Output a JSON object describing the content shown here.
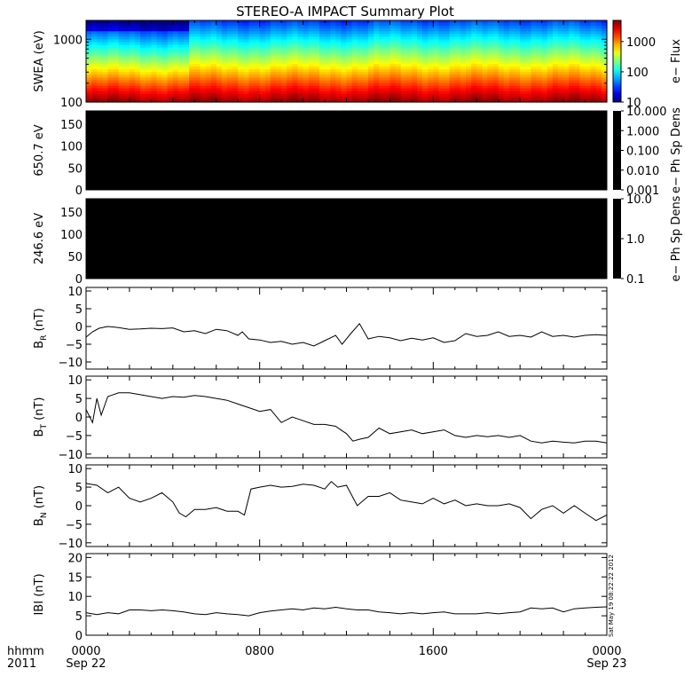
{
  "title": "STEREO-A IMPACT Summary Plot",
  "stamp": "Sat May 19 08:22:22 2012",
  "x_axis": {
    "row1_label": "hhmm",
    "row2_label": "2011",
    "ticks": [
      {
        "pos": 0,
        "label": "0000",
        "sub": "Sep 22"
      },
      {
        "pos": 0.3333,
        "label": "0800",
        "sub": ""
      },
      {
        "pos": 0.6667,
        "label": "1600",
        "sub": ""
      },
      {
        "pos": 1,
        "label": "0000",
        "sub": "Sep 23"
      }
    ]
  },
  "colors": {
    "line": "#000000",
    "pad_fill": "#000000"
  },
  "chart_data": [
    {
      "type": "heatmap",
      "ylabel": "SWEA (eV)",
      "yscale": "log",
      "ylim": [
        100,
        2000
      ],
      "yticks": [
        {
          "v": 100,
          "label": "100"
        },
        {
          "v": 1000,
          "label": "1000"
        }
      ],
      "colorbar": {
        "label": "e− Flux",
        "scale": "log",
        "range": [
          10,
          5000
        ],
        "ticks": [
          {
            "v": 10,
            "label": "10"
          },
          {
            "v": 100,
            "label": "100"
          },
          {
            "v": 1000,
            "label": "1000"
          }
        ]
      }
    },
    {
      "type": "heatmap",
      "ylabel": "650.7 eV",
      "ylim": [
        0,
        180
      ],
      "yticks": [
        {
          "v": 0,
          "label": "0"
        },
        {
          "v": 50,
          "label": "50"
        },
        {
          "v": 100,
          "label": "100"
        },
        {
          "v": 150,
          "label": "150"
        }
      ],
      "fill": "black",
      "colorbar": {
        "label": "e− Ph Sp Dens",
        "scale": "log",
        "range": [
          0.001,
          10
        ],
        "ticks": [
          {
            "v": 10,
            "label": "10.000"
          },
          {
            "v": 1,
            "label": "1.000"
          },
          {
            "v": 0.1,
            "label": "0.100"
          },
          {
            "v": 0.01,
            "label": "0.010"
          },
          {
            "v": 0.001,
            "label": "0.001"
          }
        ]
      }
    },
    {
      "type": "heatmap",
      "ylabel": "246.6 eV",
      "ylim": [
        0,
        180
      ],
      "yticks": [
        {
          "v": 0,
          "label": "0"
        },
        {
          "v": 50,
          "label": "50"
        },
        {
          "v": 100,
          "label": "100"
        },
        {
          "v": 150,
          "label": "150"
        }
      ],
      "fill": "black",
      "colorbar": {
        "label": "e− Ph Sp Dens",
        "scale": "log",
        "range": [
          0.1,
          10
        ],
        "ticks": [
          {
            "v": 10,
            "label": "10.0"
          },
          {
            "v": 1,
            "label": "1.0"
          },
          {
            "v": 0.1,
            "label": "0.1"
          }
        ]
      }
    },
    {
      "type": "line",
      "ylabel": "B",
      "ysub": "R",
      "yunit": " (nT)",
      "ylim": [
        -12,
        11
      ],
      "yticks": [
        {
          "v": -10,
          "label": "−10"
        },
        {
          "v": -5,
          "label": "−5"
        },
        {
          "v": 0,
          "label": "0"
        },
        {
          "v": 5,
          "label": "5"
        },
        {
          "v": 10,
          "label": "10"
        }
      ],
      "x": [
        0,
        0.3,
        0.6,
        1.0,
        1.5,
        2,
        2.5,
        3,
        3.5,
        4,
        4.5,
        5,
        5.5,
        6,
        6.5,
        7,
        7.2,
        7.5,
        8,
        8.5,
        9,
        9.5,
        10,
        10.5,
        11,
        11.5,
        11.8,
        12.2,
        12.6,
        13,
        13.5,
        14,
        14.5,
        15,
        15.5,
        16,
        16.5,
        17,
        17.5,
        18,
        18.5,
        19,
        19.5,
        20,
        20.5,
        21,
        21.5,
        22,
        22.5,
        23,
        23.5,
        24
      ],
      "y": [
        -3,
        -1.5,
        -0.5,
        0,
        -0.3,
        -0.8,
        -0.7,
        -0.5,
        -0.6,
        -0.4,
        -1.5,
        -1.2,
        -2,
        -0.8,
        -1.2,
        -2.5,
        -1.5,
        -3.5,
        -3.8,
        -4.5,
        -4.2,
        -5,
        -4.5,
        -5.5,
        -4,
        -2.5,
        -5,
        -2,
        0.8,
        -3.5,
        -2.8,
        -3.2,
        -4,
        -3.3,
        -3.8,
        -3.2,
        -4.5,
        -4,
        -2,
        -2.8,
        -2.5,
        -1.5,
        -2.8,
        -2.5,
        -3,
        -1.5,
        -2.8,
        -2.5,
        -3,
        -2.5,
        -2.3,
        -2.5
      ]
    },
    {
      "type": "line",
      "ylabel": "B",
      "ysub": "T",
      "yunit": " (nT)",
      "ylim": [
        -11,
        11
      ],
      "yticks": [
        {
          "v": -10,
          "label": "−10"
        },
        {
          "v": -5,
          "label": "−5"
        },
        {
          "v": 0,
          "label": "0"
        },
        {
          "v": 5,
          "label": "5"
        },
        {
          "v": 10,
          "label": "10"
        }
      ],
      "x": [
        0,
        0.3,
        0.5,
        0.7,
        1.0,
        1.5,
        2,
        2.5,
        3,
        3.5,
        4,
        4.5,
        5,
        5.5,
        6,
        6.5,
        7,
        7.5,
        8,
        8.5,
        9,
        9.5,
        10,
        10.5,
        11,
        11.5,
        12,
        12.3,
        12.6,
        13,
        13.5,
        14,
        14.5,
        15,
        15.5,
        16,
        16.5,
        17,
        17.5,
        18,
        18.5,
        19,
        19.5,
        20,
        20.5,
        21,
        21.5,
        22,
        22.5,
        23,
        23.5,
        24
      ],
      "y": [
        2,
        -1.5,
        5,
        0.5,
        5.5,
        6.5,
        6.5,
        6,
        5.5,
        5,
        5.5,
        5.3,
        5.8,
        5.5,
        5,
        4.5,
        3.5,
        2.5,
        1.5,
        2,
        -1.5,
        0,
        -1,
        -2,
        -2,
        -2.5,
        -4.5,
        -6.5,
        -6,
        -5.5,
        -3,
        -4.5,
        -4,
        -3.5,
        -4.5,
        -4,
        -3.5,
        -5,
        -5.5,
        -5,
        -5.3,
        -5,
        -5.5,
        -5,
        -6.5,
        -7,
        -6.5,
        -6.8,
        -7,
        -6.5,
        -6.5,
        -7
      ]
    },
    {
      "type": "line",
      "ylabel": "B",
      "ysub": "N",
      "yunit": " (nT)",
      "ylim": [
        -11,
        11
      ],
      "yticks": [
        {
          "v": -10,
          "label": "−10"
        },
        {
          "v": -5,
          "label": "−5"
        },
        {
          "v": 0,
          "label": "0"
        },
        {
          "v": 5,
          "label": "5"
        },
        {
          "v": 10,
          "label": "10"
        }
      ],
      "x": [
        0,
        0.5,
        1.0,
        1.5,
        2,
        2.5,
        3,
        3.5,
        4,
        4.3,
        4.6,
        5,
        5.5,
        6,
        6.5,
        7,
        7.3,
        7.6,
        8,
        8.5,
        9,
        9.5,
        10,
        10.5,
        11,
        11.3,
        11.6,
        12,
        12.5,
        13,
        13.5,
        14,
        14.5,
        15,
        15.5,
        16,
        16.5,
        17,
        17.5,
        18,
        18.5,
        19,
        19.5,
        20,
        20.5,
        21,
        21.5,
        22,
        22.5,
        23,
        23.5,
        24
      ],
      "y": [
        6,
        5.5,
        3.5,
        5,
        2,
        1,
        2,
        3.5,
        1,
        -2,
        -3,
        -1,
        -1,
        -0.5,
        -1.5,
        -1.5,
        -2.5,
        4.5,
        5,
        5.5,
        5,
        5.2,
        5.8,
        5.5,
        4.5,
        6.5,
        5,
        5.5,
        0,
        2.5,
        2.5,
        3.5,
        1.5,
        1,
        0.5,
        2,
        0.5,
        1.5,
        0,
        0.5,
        0,
        0,
        0.5,
        -0.5,
        -3.5,
        -1,
        0,
        -2,
        0,
        -2,
        -4,
        -2.5
      ]
    },
    {
      "type": "line",
      "ylabel": "IBI",
      "yunit": " (nT)",
      "ylim": [
        0,
        21
      ],
      "yticks": [
        {
          "v": 0,
          "label": "0"
        },
        {
          "v": 5,
          "label": "5"
        },
        {
          "v": 10,
          "label": "10"
        },
        {
          "v": 15,
          "label": "15"
        },
        {
          "v": 20,
          "label": "20"
        }
      ],
      "x": [
        0,
        0.5,
        1.0,
        1.5,
        2,
        2.5,
        3,
        3.5,
        4,
        4.5,
        5,
        5.5,
        6,
        6.5,
        7,
        7.5,
        8,
        8.5,
        9,
        9.5,
        10,
        10.5,
        11,
        11.5,
        12,
        12.5,
        13,
        13.5,
        14,
        14.5,
        15,
        15.5,
        16,
        16.5,
        17,
        17.5,
        18,
        18.5,
        19,
        19.5,
        20,
        20.5,
        21,
        21.5,
        22,
        22.5,
        23,
        23.5,
        24
      ],
      "y": [
        5.8,
        5.3,
        5.8,
        5.5,
        6.5,
        6.5,
        6.3,
        6.5,
        6.3,
        6,
        5.5,
        5.3,
        5.8,
        5.5,
        5.3,
        5,
        5.8,
        6.2,
        6.5,
        6.8,
        6.5,
        7,
        6.8,
        7.2,
        6.8,
        6.5,
        6.5,
        6,
        5.8,
        5.5,
        5.8,
        5.5,
        5.8,
        6,
        5.5,
        5.5,
        5.5,
        5.8,
        5.5,
        5.8,
        6,
        7,
        6.8,
        7,
        6,
        6.8,
        7,
        7.2,
        7.3
      ]
    }
  ]
}
